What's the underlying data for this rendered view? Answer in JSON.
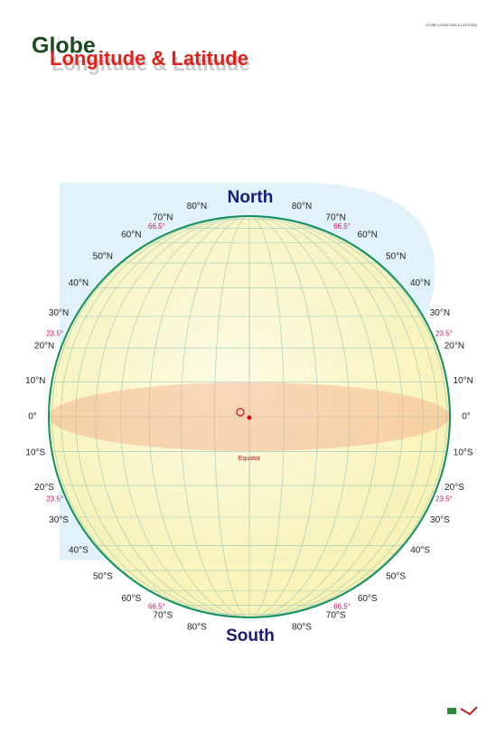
{
  "header": {
    "code": "GLOBE (LONGITUDE & LATITUDE)",
    "title": "Globe",
    "subtitle": "Longitude & Latitude"
  },
  "globe": {
    "north": "North",
    "south": "South",
    "equator": "Equator",
    "latitudes_left": [
      "80°N",
      "70°N",
      "60°N",
      "50°N",
      "40°N",
      "30°N",
      "20°N",
      "10°N",
      "0°",
      "10°S",
      "20°S",
      "30°S",
      "40°S",
      "50°S",
      "60°S",
      "70°S",
      "80°S"
    ],
    "latitudes_right": [
      "80°N",
      "70°N",
      "60°N",
      "50°N",
      "40°N",
      "30°N",
      "20°N",
      "10°N",
      "0°",
      "10°S",
      "20°S",
      "30°S",
      "40°S",
      "50°S",
      "60°S",
      "70°S",
      "80°S"
    ],
    "special_left": [
      "66.5°",
      "23.5°",
      "23.5°",
      "66.5°"
    ],
    "special_right": [
      "66.5°",
      "23.5°",
      "23.5°",
      "66.5°"
    ]
  }
}
